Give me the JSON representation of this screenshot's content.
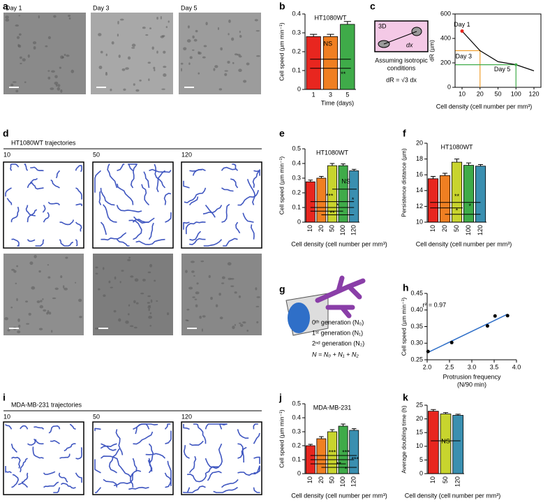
{
  "figure": {
    "a": {
      "label": "a",
      "images": [
        "Day 1",
        "Day 3",
        "Day 5"
      ]
    },
    "c_diagram": {
      "box": "3D",
      "dx": "dx",
      "caption": [
        "Assuming isotropic",
        "conditions"
      ],
      "formula": "dR = √3 dx"
    },
    "d": {
      "label": "d",
      "title": "HT1080WT trajectories",
      "subpanels": [
        "10",
        "50",
        "120"
      ]
    },
    "g": {
      "label": "g",
      "lines": [
        "0ᵗʰ generation (N₀)",
        "1ˢᵗ generation (N₁)",
        "2ⁿᵈ generation (N₂)",
        "N = N₀ + N₁ + N₂"
      ]
    },
    "i": {
      "label": "i",
      "title": "MDA-MB-231 trajectories",
      "subpanels": [
        "10",
        "50",
        "120"
      ]
    }
  },
  "chart_data": [
    {
      "type": "bar",
      "label": "b",
      "title": "HT1080WT",
      "title_color": "#e8261f",
      "categories": [
        "1",
        "3",
        "5"
      ],
      "values": [
        0.28,
        0.28,
        0.345
      ],
      "errors": [
        0.012,
        0.012,
        0.015
      ],
      "colors": [
        "#e8261f",
        "#f07f22",
        "#3fab49"
      ],
      "ylim": [
        0,
        0.4
      ],
      "yticks": [
        0,
        0.1,
        0.2,
        0.3,
        0.4
      ],
      "xlabel": "Time (days)",
      "ylabel": "Cell speed (µm min⁻¹)",
      "annotations": [
        "NS",
        "**"
      ]
    },
    {
      "type": "line",
      "label": "c",
      "categories": [
        "10",
        "20",
        "50",
        "100",
        "120"
      ],
      "values": [
        460,
        300,
        210,
        185,
        135
      ],
      "color": "#000000",
      "ylim": [
        0,
        600
      ],
      "yticks": [
        0,
        200,
        400,
        600
      ],
      "xlabel": "Cell density (cell number per mm³)",
      "ylabel": "dR (µm)",
      "annotations": [
        {
          "text": "Day 1",
          "color": "#e8261f"
        },
        {
          "text": "Day 3",
          "color": "#f0a030"
        },
        {
          "text": "Day 5",
          "color": "#3fab49"
        }
      ]
    },
    {
      "type": "bar",
      "label": "e",
      "title": "HT1080WT",
      "title_color": "#e8261f",
      "categories": [
        "10",
        "20",
        "50",
        "100",
        "120"
      ],
      "values": [
        0.275,
        0.3,
        0.385,
        0.385,
        0.35
      ],
      "errors": [
        0.012,
        0.012,
        0.015,
        0.012,
        0.01
      ],
      "colors": [
        "#e8261f",
        "#f07f22",
        "#c8d42e",
        "#3fab49",
        "#3a8fb0"
      ],
      "ylim": [
        0,
        0.5
      ],
      "yticks": [
        0,
        0.1,
        0.2,
        0.3,
        0.4,
        0.5
      ],
      "xlabel": "Cell density (cell number per mm³)",
      "ylabel": "Cell speed (µm min⁻¹)",
      "annotations": [
        "NS",
        "***",
        "*",
        "**",
        "*"
      ]
    },
    {
      "type": "bar",
      "label": "f",
      "title": "HT1080WT",
      "title_color": "#e8261f",
      "categories": [
        "10",
        "20",
        "50",
        "100",
        "120"
      ],
      "values": [
        15.5,
        15.9,
        17.6,
        17.2,
        17.1
      ],
      "errors": [
        0.3,
        0.3,
        0.4,
        0.3,
        0.2
      ],
      "colors": [
        "#e8261f",
        "#f07f22",
        "#c8d42e",
        "#3fab49",
        "#3a8fb0"
      ],
      "ylim": [
        10,
        20
      ],
      "yticks": [
        10,
        12,
        14,
        16,
        18,
        20
      ],
      "xlabel": "Cell density (cell number per mm³)",
      "ylabel": "Persistence distance (µm)",
      "annotations": [
        "**",
        "*",
        "*"
      ]
    },
    {
      "type": "scatter",
      "label": "h",
      "x": [
        2.02,
        2.55,
        3.35,
        3.52,
        3.8
      ],
      "y": [
        0.275,
        0.302,
        0.352,
        0.382,
        0.383
      ],
      "color": "#000000",
      "xlim": [
        2,
        4
      ],
      "xticks": [
        {
          "value": 2,
          "label": "2.0"
        },
        2.5,
        {
          "value": 3,
          "label": "3.0"
        },
        3.5,
        {
          "value": 4,
          "label": "4.0"
        }
      ],
      "ylim": [
        0.25,
        0.45
      ],
      "yticks": [
        0.25,
        {
          "value": 0.3,
          "label": "0.30"
        },
        0.35,
        {
          "value": 0.4,
          "label": "0.40"
        },
        0.45
      ],
      "xlabel": [
        "Protrusion frequency",
        "(N/90 min)"
      ],
      "ylabel": "Cell speed (µm min⁻¹)",
      "annotations": [
        "r² = 0.97"
      ]
    },
    {
      "type": "bar",
      "label": "j",
      "title": "MDA-MB-231",
      "title_color": "#d63ad6",
      "categories": [
        "10",
        "20",
        "50",
        "100",
        "120"
      ],
      "values": [
        0.2,
        0.25,
        0.3,
        0.34,
        0.31
      ],
      "errors": [
        0.01,
        0.015,
        0.015,
        0.015,
        0.012
      ],
      "colors": [
        "#e8261f",
        "#f07f22",
        "#c8d42e",
        "#3fab49",
        "#3a8fb0"
      ],
      "ylim": [
        0,
        0.5
      ],
      "yticks": [
        0,
        0.1,
        0.2,
        0.3,
        0.4,
        0.5
      ],
      "xlabel": "Cell density (cell number per mm³)",
      "ylabel": "Cell speed (µm min⁻¹)",
      "annotations": [
        "***",
        "***",
        "***",
        "**",
        "*"
      ]
    },
    {
      "type": "bar",
      "label": "k",
      "categories": [
        "10",
        "50",
        "120"
      ],
      "values": [
        22.8,
        21.8,
        21.3
      ],
      "errors": [
        0.6,
        0.5,
        0.4
      ],
      "colors": [
        "#e8261f",
        "#c8d42e",
        "#3a8fb0"
      ],
      "ylim": [
        0,
        25
      ],
      "yticks": [
        0,
        5,
        10,
        15,
        20,
        25
      ],
      "xlabel": "Cell density (cell number per mm³)",
      "ylabel": "Average doubling time (h)",
      "annotations": [
        "NS"
      ]
    }
  ]
}
